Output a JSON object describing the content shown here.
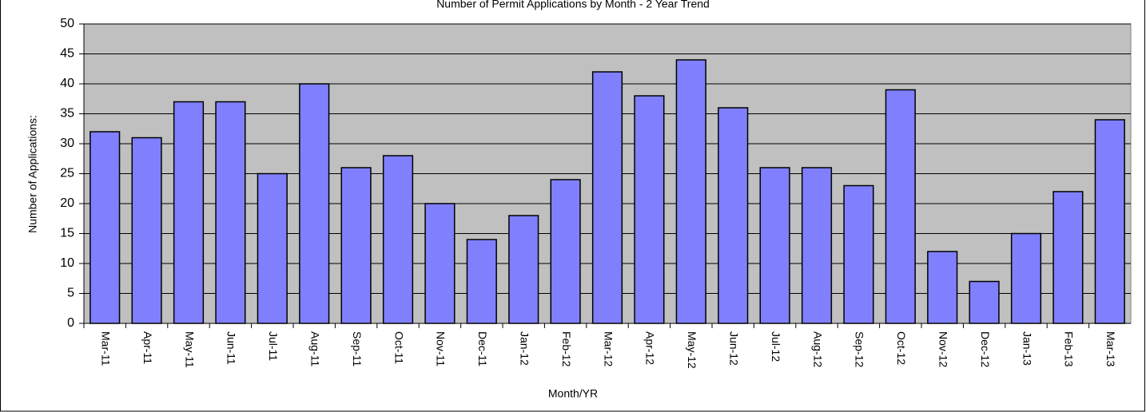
{
  "chart_data": {
    "type": "bar",
    "title": "Number of Permit Applications by Month - 2 Year Trend",
    "x_label": "Month/YR",
    "y_label": "Number of Applications:",
    "categories": [
      "Mar-11",
      "Apr-11",
      "May-11",
      "Jun-11",
      "Jul-11",
      "Aug-11",
      "Sep-11",
      "Oct-11",
      "Nov-11",
      "Dec-11",
      "Jan-12",
      "Feb-12",
      "Mar-12",
      "Apr-12",
      "May-12",
      "Jun-12",
      "Jul-12",
      "Aug-12",
      "Sep-12",
      "Oct-12",
      "Nov-12",
      "Dec-12",
      "Jan-13",
      "Feb-13",
      "Mar-13"
    ],
    "values": [
      32,
      31,
      37,
      37,
      25,
      40,
      26,
      28,
      20,
      14,
      18,
      24,
      42,
      38,
      44,
      36,
      26,
      26,
      23,
      39,
      12,
      7,
      15,
      22,
      34
    ],
    "color": "#8080ff",
    "background": "#c0c0c0",
    "ylim": [
      0,
      50
    ],
    "yticks": [
      0,
      5,
      10,
      15,
      20,
      25,
      30,
      35,
      40,
      45,
      50
    ],
    "grid": true
  }
}
